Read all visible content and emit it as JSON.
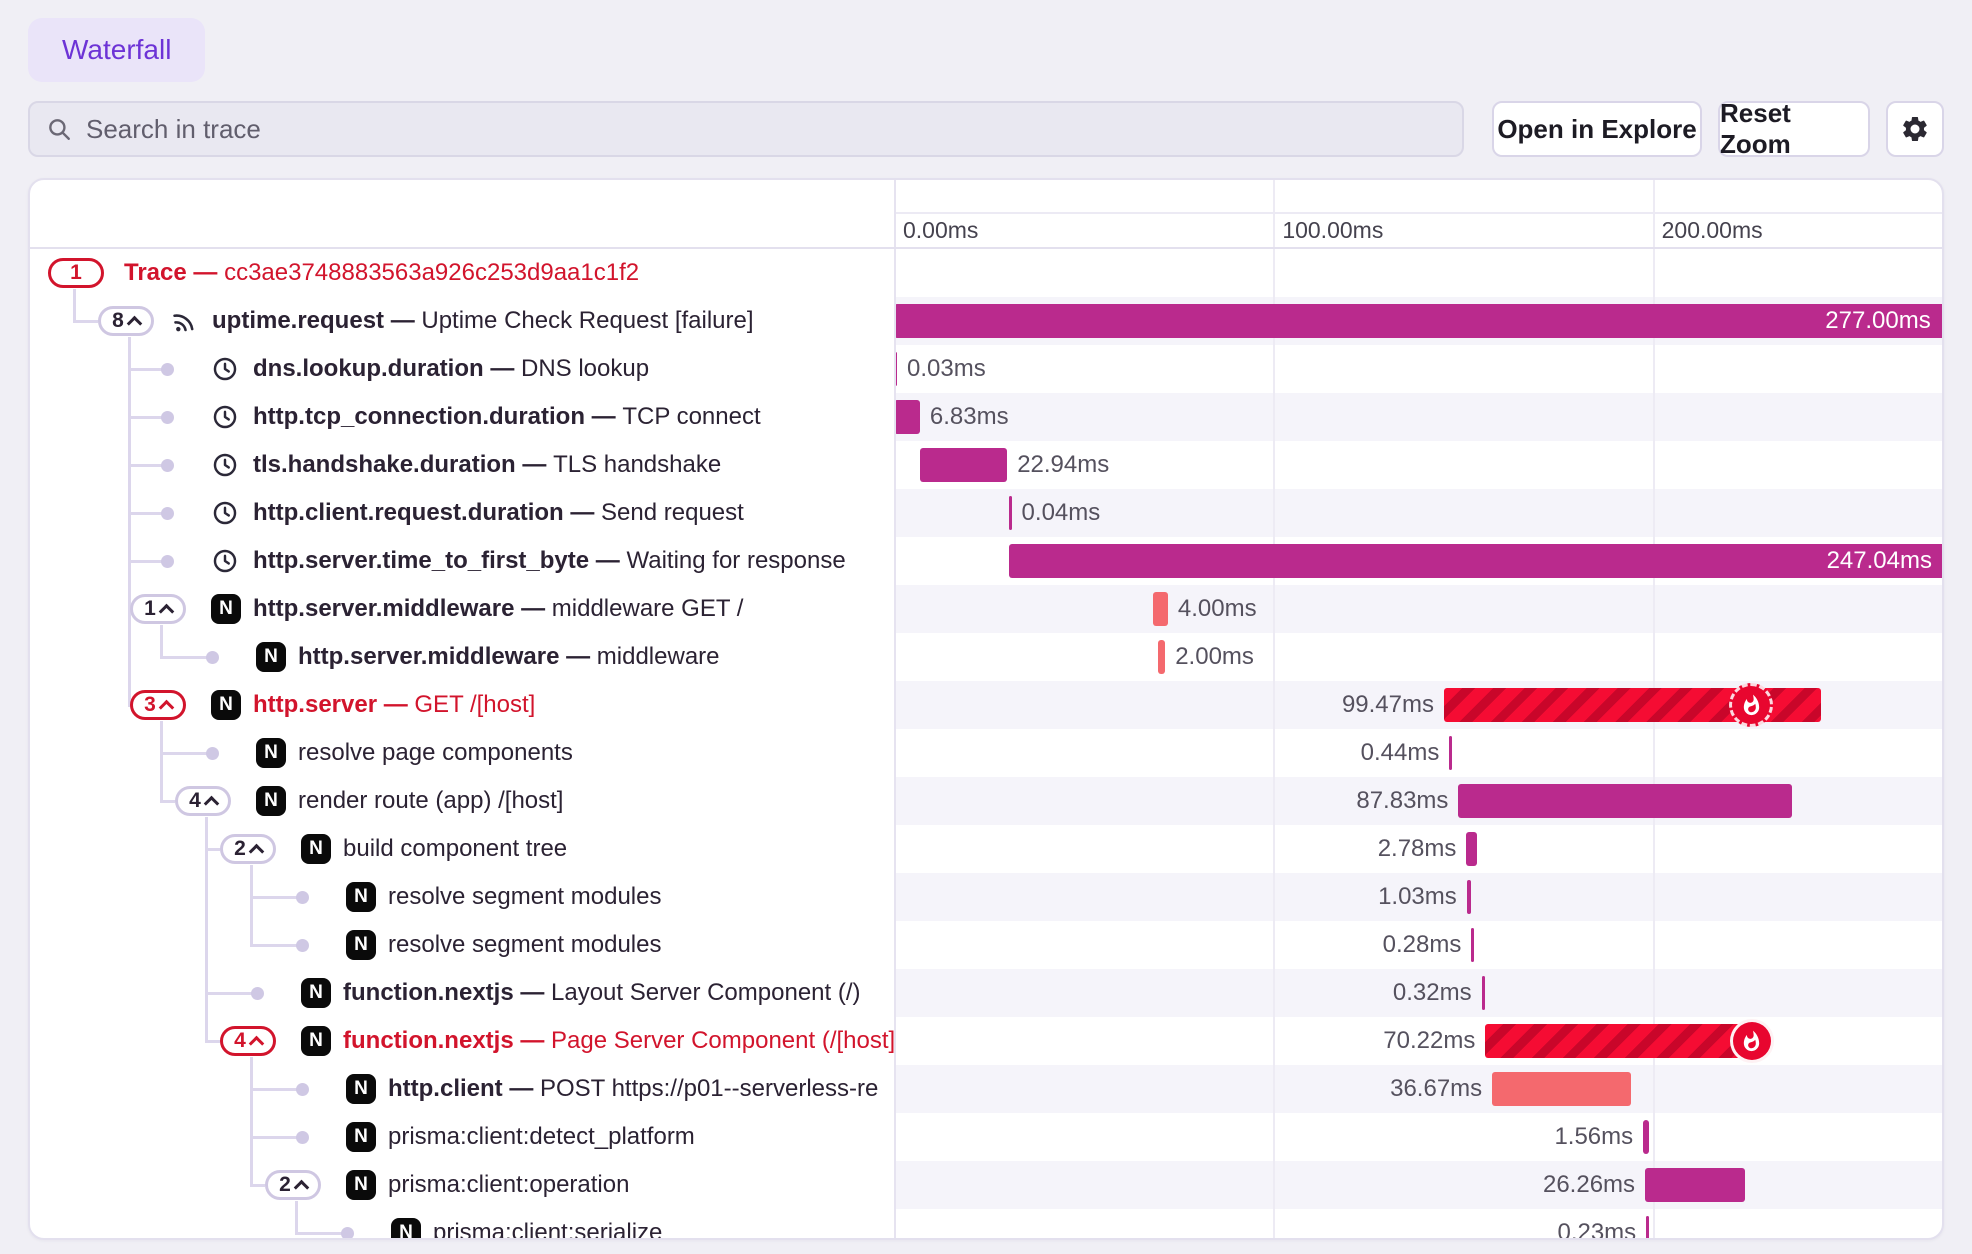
{
  "tab": {
    "label": "Waterfall"
  },
  "toolbar": {
    "search_placeholder": "Search in trace",
    "open_in_explore": "Open in Explore",
    "reset_zoom": "Reset Zoom"
  },
  "separator": "—",
  "colors": {
    "magenta": "#ba2a8d",
    "salmon": "#f4696e",
    "error_base": "#f50c33",
    "error_stripe": "#c9062a",
    "error_text": "#d2142c",
    "accent_purple": "#6d33d6"
  },
  "axis": {
    "total_ms": 277.34,
    "ticks": [
      {
        "ms": 0,
        "label": "0.00ms"
      },
      {
        "ms": 100,
        "label": "100.00ms"
      },
      {
        "ms": 200,
        "label": "200.00ms"
      }
    ]
  },
  "rows": [
    {
      "level": 0,
      "parent": null,
      "badge": "1",
      "chevron": false,
      "error": true,
      "icon": null,
      "name": "Trace",
      "desc": "cc3ae3748883563a926c253d9aa1c1f2",
      "bold": true,
      "bar": null
    },
    {
      "level": 1,
      "parent": 0,
      "badge": "8",
      "chevron": true,
      "error": false,
      "icon": "sentry-icon",
      "name": "uptime.request",
      "desc": "Uptime Check Request [failure]",
      "bold": true,
      "bar": {
        "start_ms": 0,
        "duration_ms": 277.0,
        "label": "277.00ms",
        "color": "magenta",
        "label_pos": "inside"
      }
    },
    {
      "level": 2,
      "parent": 1,
      "badge": null,
      "error": false,
      "icon": "clock-icon",
      "name": "dns.lookup.duration",
      "desc": "DNS lookup",
      "bold": true,
      "bar": {
        "start_ms": 0,
        "duration_ms": 0.03,
        "label": "0.03ms",
        "color": "magenta",
        "label_pos": "right"
      }
    },
    {
      "level": 2,
      "parent": 1,
      "badge": null,
      "error": false,
      "icon": "clock-icon",
      "name": "http.tcp_connection.duration",
      "desc": "TCP connect",
      "bold": true,
      "bar": {
        "start_ms": 0,
        "duration_ms": 6.83,
        "label": "6.83ms",
        "color": "magenta",
        "label_pos": "right"
      }
    },
    {
      "level": 2,
      "parent": 1,
      "badge": null,
      "error": false,
      "icon": "clock-icon",
      "name": "tls.handshake.duration",
      "desc": "TLS handshake",
      "bold": true,
      "bar": {
        "start_ms": 6.9,
        "duration_ms": 22.94,
        "label": "22.94ms",
        "color": "magenta",
        "label_pos": "right"
      }
    },
    {
      "level": 2,
      "parent": 1,
      "badge": null,
      "error": false,
      "icon": "clock-icon",
      "name": "http.client.request.duration",
      "desc": "Send request",
      "bold": true,
      "bar": {
        "start_ms": 30.2,
        "duration_ms": 0.04,
        "label": "0.04ms",
        "color": "magenta",
        "label_pos": "right"
      }
    },
    {
      "level": 2,
      "parent": 1,
      "badge": null,
      "error": false,
      "icon": "clock-icon",
      "name": "http.server.time_to_first_byte",
      "desc": "Waiting for response",
      "bold": true,
      "bar": {
        "start_ms": 30.3,
        "duration_ms": 247.04,
        "label": "247.04ms",
        "color": "magenta",
        "label_pos": "inside"
      }
    },
    {
      "level": 2,
      "parent": 1,
      "badge": "1",
      "chevron": true,
      "error": false,
      "icon": "nextjs-icon",
      "name": "http.server.middleware",
      "desc": "middleware GET /",
      "bold": true,
      "bar": {
        "start_ms": 68.2,
        "duration_ms": 4.0,
        "label": "4.00ms",
        "color": "salmon",
        "label_pos": "right"
      }
    },
    {
      "level": 3,
      "parent": 7,
      "badge": null,
      "error": false,
      "icon": "nextjs-icon",
      "name": "http.server.middleware",
      "desc": "middleware",
      "bold": true,
      "bar": {
        "start_ms": 69.5,
        "duration_ms": 2.0,
        "label": "2.00ms",
        "color": "salmon",
        "label_pos": "right"
      }
    },
    {
      "level": 2,
      "parent": 1,
      "badge": "3",
      "chevron": true,
      "error": true,
      "icon": "nextjs-icon",
      "name": "http.server",
      "desc": "GET /[host]",
      "bold": true,
      "bar": {
        "start_ms": 145.0,
        "duration_ms": 99.47,
        "label": "99.47ms",
        "color": "error",
        "label_pos": "left",
        "fire": "inset"
      }
    },
    {
      "level": 3,
      "parent": 9,
      "badge": null,
      "error": false,
      "icon": "nextjs-icon",
      "name": "resolve page components",
      "desc": null,
      "bold": false,
      "bar": {
        "start_ms": 146.4,
        "duration_ms": 0.44,
        "label": "0.44ms",
        "color": "magenta",
        "label_pos": "left"
      }
    },
    {
      "level": 3,
      "parent": 9,
      "badge": "4",
      "chevron": true,
      "error": false,
      "icon": "nextjs-icon",
      "name": "render route (app) /[host]",
      "desc": null,
      "bold": false,
      "bar": {
        "start_ms": 148.8,
        "duration_ms": 87.83,
        "label": "87.83ms",
        "color": "magenta",
        "label_pos": "left"
      }
    },
    {
      "level": 4,
      "parent": 11,
      "badge": "2",
      "chevron": true,
      "error": false,
      "icon": "nextjs-icon",
      "name": "build component tree",
      "desc": null,
      "bold": false,
      "bar": {
        "start_ms": 150.9,
        "duration_ms": 2.78,
        "label": "2.78ms",
        "color": "magenta",
        "label_pos": "left"
      }
    },
    {
      "level": 5,
      "parent": 12,
      "badge": null,
      "error": false,
      "icon": "nextjs-icon",
      "name": "resolve segment modules",
      "desc": null,
      "bold": false,
      "bar": {
        "start_ms": 151.0,
        "duration_ms": 1.03,
        "label": "1.03ms",
        "color": "magenta",
        "label_pos": "left"
      }
    },
    {
      "level": 5,
      "parent": 12,
      "badge": null,
      "error": false,
      "icon": "nextjs-icon",
      "name": "resolve segment modules",
      "desc": null,
      "bold": false,
      "bar": {
        "start_ms": 152.2,
        "duration_ms": 0.28,
        "label": "0.28ms",
        "color": "magenta",
        "label_pos": "left"
      }
    },
    {
      "level": 4,
      "parent": 11,
      "badge": null,
      "error": false,
      "icon": "nextjs-icon",
      "name": "function.nextjs",
      "desc": "Layout Server Component (/)",
      "bold": true,
      "bar": {
        "start_ms": 154.9,
        "duration_ms": 0.32,
        "label": "0.32ms",
        "color": "magenta",
        "label_pos": "left"
      }
    },
    {
      "level": 4,
      "parent": 11,
      "badge": "4",
      "chevron": true,
      "error": true,
      "icon": "nextjs-icon",
      "name": "function.nextjs",
      "desc": "Page Server Component (/[host])",
      "bold": true,
      "bar": {
        "start_ms": 155.9,
        "duration_ms": 70.22,
        "label": "70.22ms",
        "color": "error",
        "label_pos": "left",
        "fire": "edge"
      }
    },
    {
      "level": 5,
      "parent": 16,
      "badge": null,
      "error": false,
      "icon": "nextjs-icon",
      "name": "http.client",
      "desc": "POST https://p01--serverless-re",
      "bold": true,
      "bar": {
        "start_ms": 157.7,
        "duration_ms": 36.67,
        "label": "36.67ms",
        "color": "salmon",
        "label_pos": "left"
      }
    },
    {
      "level": 5,
      "parent": 16,
      "badge": null,
      "error": false,
      "icon": "nextjs-icon",
      "name": "prisma:client:detect_platform",
      "desc": null,
      "bold": false,
      "bar": {
        "start_ms": 197.5,
        "duration_ms": 1.56,
        "label": "1.56ms",
        "color": "magenta",
        "label_pos": "left"
      }
    },
    {
      "level": 5,
      "parent": 16,
      "badge": "2",
      "chevron": true,
      "error": false,
      "icon": "nextjs-icon",
      "name": "prisma:client:operation",
      "desc": null,
      "bold": false,
      "bar": {
        "start_ms": 198.0,
        "duration_ms": 26.26,
        "label": "26.26ms",
        "color": "magenta",
        "label_pos": "left"
      }
    },
    {
      "level": 6,
      "parent": 19,
      "badge": null,
      "error": false,
      "icon": "nextjs-icon",
      "name": "prisma:client:serialize",
      "desc": null,
      "bold": false,
      "bar": {
        "start_ms": 198.3,
        "duration_ms": 0.23,
        "label": "0.23ms",
        "color": "magenta",
        "label_pos": "left"
      }
    }
  ]
}
